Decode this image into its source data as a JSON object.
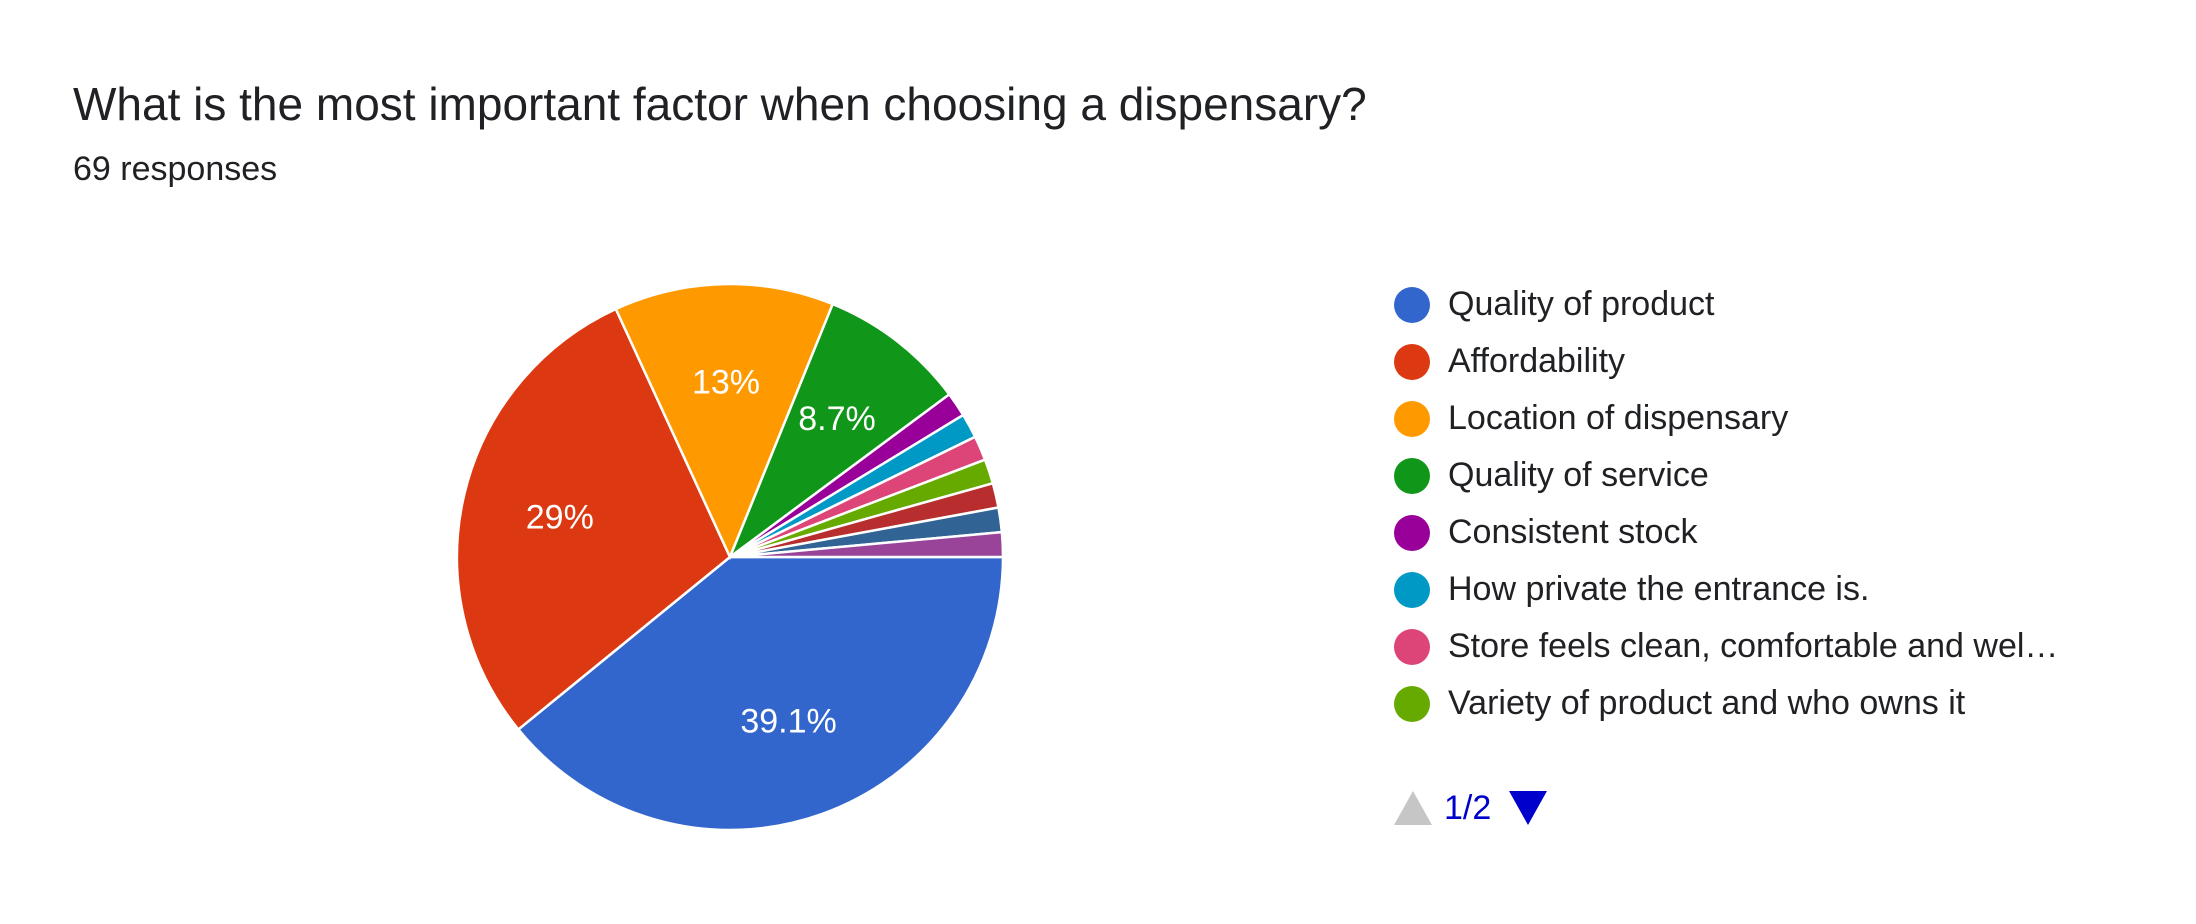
{
  "header": {
    "title": "What is the most important factor when choosing a dispensary?",
    "responses": "69 responses"
  },
  "chart_data": {
    "type": "pie",
    "slices": [
      {
        "label": "Quality of product",
        "value": 39.1,
        "color": "#3366cc",
        "data_label": "39.1%"
      },
      {
        "label": "Affordability",
        "value": 29,
        "color": "#dc3912",
        "data_label": "29%"
      },
      {
        "label": "Location of dispensary",
        "value": 13,
        "color": "#ff9900",
        "data_label": "13%"
      },
      {
        "label": "Quality of service",
        "value": 8.7,
        "color": "#109618",
        "data_label": "8.7%"
      },
      {
        "label": "Consistent stock",
        "value": 1.45,
        "color": "#990099",
        "data_label": ""
      },
      {
        "label": "How private the entrance is.",
        "value": 1.45,
        "color": "#0099c6",
        "data_label": ""
      },
      {
        "label": "Store feels clean, comfortable and wel…",
        "value": 1.45,
        "color": "#dd4477",
        "data_label": ""
      },
      {
        "label": "Variety of product and who owns it",
        "value": 1.45,
        "color": "#66aa00",
        "data_label": ""
      },
      {
        "label": "",
        "value": 1.45,
        "color": "#b82e2e",
        "data_label": ""
      },
      {
        "label": "",
        "value": 1.45,
        "color": "#316395",
        "data_label": ""
      },
      {
        "label": "",
        "value": 1.45,
        "color": "#994499",
        "data_label": ""
      }
    ]
  },
  "legend": {
    "items": [
      {
        "label": "Quality of product",
        "color": "#3366cc"
      },
      {
        "label": "Affordability",
        "color": "#dc3912"
      },
      {
        "label": "Location of dispensary",
        "color": "#ff9900"
      },
      {
        "label": "Quality of service",
        "color": "#109618"
      },
      {
        "label": "Consistent stock",
        "color": "#990099"
      },
      {
        "label": "How private the entrance is.",
        "color": "#0099c6"
      },
      {
        "label": "Store feels clean, comfortable and wel…",
        "color": "#dd4477"
      },
      {
        "label": "Variety of product and who owns it",
        "color": "#66aa00"
      }
    ]
  },
  "pager": {
    "label": "1/2",
    "prev_icon": "triangle-up-icon",
    "next_icon": "triangle-down-icon"
  }
}
